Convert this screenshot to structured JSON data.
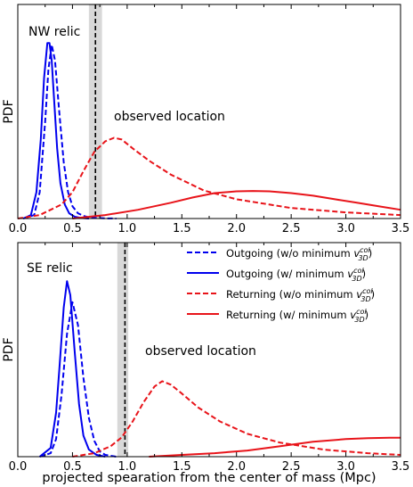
{
  "chart_data": [
    {
      "type": "line",
      "panel_label": "NW relic",
      "ylabel": "PDF",
      "xlabel": "",
      "xlim": [
        0.0,
        3.5
      ],
      "xticks": [
        "0.0",
        "0.5",
        "1.0",
        "1.5",
        "2.0",
        "2.5",
        "3.0",
        "3.5"
      ],
      "ylim": [
        0,
        1
      ],
      "observed_location": {
        "x": 0.71,
        "band": [
          0.65,
          0.77
        ],
        "label": "observed location"
      },
      "series": [
        {
          "style": "blue-dashed",
          "x": [
            0.05,
            0.15,
            0.2,
            0.25,
            0.28,
            0.31,
            0.34,
            0.38,
            0.42,
            0.46,
            0.5,
            0.55,
            0.6,
            0.65,
            0.72,
            0.8,
            0.9
          ],
          "y": [
            0,
            0.02,
            0.15,
            0.55,
            0.85,
            0.99,
            0.9,
            0.6,
            0.32,
            0.15,
            0.07,
            0.03,
            0.015,
            0.007,
            0.003,
            0.001,
            0
          ]
        },
        {
          "style": "blue-solid",
          "x": [
            0.05,
            0.12,
            0.17,
            0.21,
            0.24,
            0.27,
            0.29,
            0.31,
            0.33,
            0.36,
            0.39,
            0.43,
            0.47,
            0.52,
            0.58,
            0.65
          ],
          "y": [
            0,
            0.02,
            0.15,
            0.45,
            0.8,
            1.0,
            1.0,
            0.9,
            0.7,
            0.4,
            0.2,
            0.08,
            0.03,
            0.01,
            0.003,
            0
          ]
        },
        {
          "style": "red-dashed",
          "x": [
            0.0,
            0.2,
            0.4,
            0.5,
            0.6,
            0.7,
            0.8,
            0.88,
            0.95,
            1.05,
            1.2,
            1.4,
            1.7,
            2.0,
            2.5,
            3.0,
            3.5
          ],
          "y": [
            0,
            0.02,
            0.08,
            0.15,
            0.27,
            0.38,
            0.44,
            0.46,
            0.45,
            0.4,
            0.33,
            0.25,
            0.16,
            0.11,
            0.06,
            0.035,
            0.02
          ]
        },
        {
          "style": "red-solid",
          "x": [
            0.5,
            0.8,
            1.1,
            1.4,
            1.6,
            1.8,
            2.0,
            2.15,
            2.3,
            2.5,
            2.7,
            2.9,
            3.1,
            3.3,
            3.5
          ],
          "y": [
            0,
            0.02,
            0.05,
            0.09,
            0.12,
            0.145,
            0.155,
            0.157,
            0.155,
            0.145,
            0.13,
            0.11,
            0.09,
            0.07,
            0.05
          ]
        }
      ]
    },
    {
      "type": "line",
      "panel_label": "SE relic",
      "ylabel": "PDF",
      "xlabel": "projected spearation from the center of mass (Mpc)",
      "xlim": [
        0.0,
        3.5
      ],
      "xticks": [
        "0.0",
        "0.5",
        "1.0",
        "1.5",
        "2.0",
        "2.5",
        "3.0",
        "3.5"
      ],
      "ylim": [
        0,
        1
      ],
      "observed_location": {
        "x": 0.98,
        "band": [
          0.91,
          1.01
        ],
        "label": "observed location"
      },
      "legend": {
        "position": "top-right",
        "entries": [
          {
            "style": "blue-dashed",
            "text": "Outgoing (w/o minimum",
            "sym": "v",
            "sup": "col",
            "sub": "3D",
            "close": ")"
          },
          {
            "style": "blue-solid",
            "text": "Outgoing (w/ minimum",
            "sym": "v",
            "sup": "col",
            "sub": "3D",
            "close": ")"
          },
          {
            "style": "red-dashed",
            "text": "Returning (w/o minimum",
            "sym": "v",
            "sup": "col",
            "sub": "3D",
            "close": ")"
          },
          {
            "style": "red-solid",
            "text": "Returning (w/ minimum",
            "sym": "v",
            "sup": "col",
            "sub": "3D",
            "close": ")"
          }
        ]
      },
      "series": [
        {
          "style": "blue-dashed",
          "x": [
            0.2,
            0.3,
            0.35,
            0.4,
            0.45,
            0.5,
            0.55,
            0.6,
            0.65,
            0.7,
            0.75,
            0.8,
            0.9
          ],
          "y": [
            0,
            0.02,
            0.1,
            0.35,
            0.7,
            0.88,
            0.75,
            0.45,
            0.22,
            0.09,
            0.03,
            0.01,
            0
          ]
        },
        {
          "style": "blue-solid",
          "x": [
            0.2,
            0.3,
            0.35,
            0.38,
            0.42,
            0.45,
            0.48,
            0.52,
            0.56,
            0.6,
            0.65,
            0.72,
            0.8
          ],
          "y": [
            0,
            0.05,
            0.25,
            0.5,
            0.85,
            1.0,
            0.92,
            0.6,
            0.3,
            0.12,
            0.04,
            0.01,
            0
          ]
        },
        {
          "style": "red-dashed",
          "x": [
            0.5,
            0.7,
            0.85,
            0.95,
            1.05,
            1.15,
            1.25,
            1.32,
            1.4,
            1.5,
            1.65,
            1.85,
            2.1,
            2.4,
            2.8,
            3.2,
            3.5
          ],
          "y": [
            0,
            0.02,
            0.06,
            0.11,
            0.2,
            0.31,
            0.4,
            0.43,
            0.41,
            0.36,
            0.28,
            0.2,
            0.13,
            0.08,
            0.04,
            0.02,
            0.01
          ]
        },
        {
          "style": "red-solid",
          "x": [
            1.2,
            1.5,
            1.8,
            2.1,
            2.4,
            2.7,
            3.0,
            3.2,
            3.4,
            3.5
          ],
          "y": [
            0,
            0.01,
            0.02,
            0.035,
            0.06,
            0.085,
            0.1,
            0.105,
            0.108,
            0.108
          ]
        }
      ]
    }
  ]
}
